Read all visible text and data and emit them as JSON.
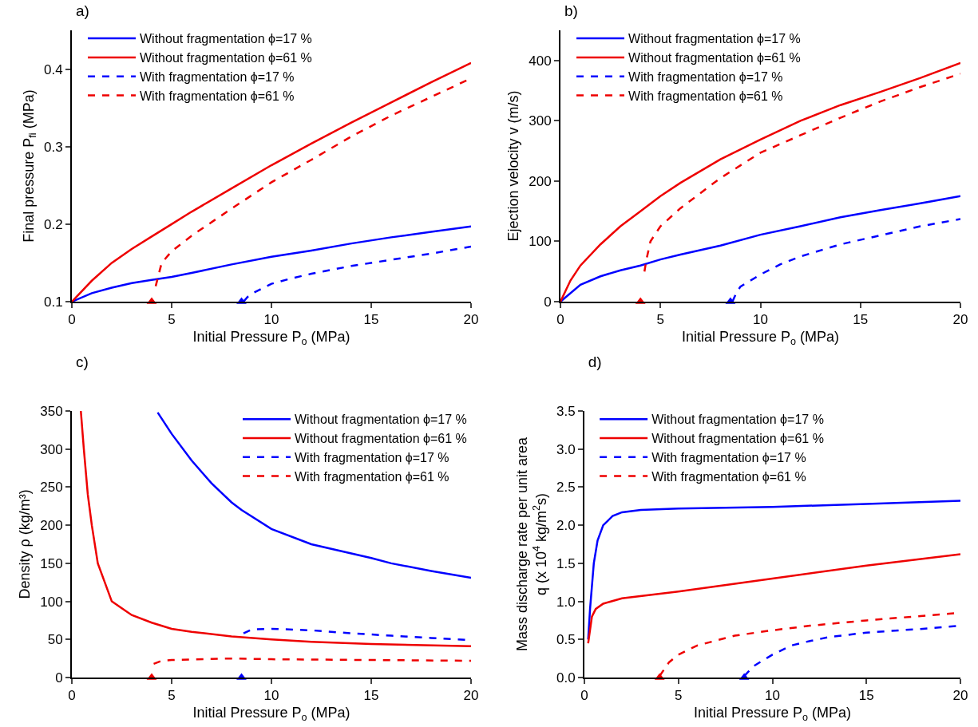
{
  "chart_data": [
    {
      "type": "line",
      "title": "a)",
      "xlabel": "Initial Pressure P$_{o}$ (MPa)",
      "ylabel": "Final pressure P$_{fi}$ (MPa)",
      "xlim": [
        0,
        20
      ],
      "xticks": [
        0,
        5,
        10,
        15,
        20
      ],
      "ylim": [
        0.1,
        0.45
      ],
      "yticks": [
        0.1,
        0.2,
        0.3,
        0.4
      ],
      "legend": "top left",
      "series": [
        {
          "name": "Without fragmentation ϕ=17 %",
          "color": "#0000ff",
          "line_style": "solid",
          "x": [
            0,
            1,
            2,
            3,
            4,
            5,
            6,
            8,
            10,
            12,
            14,
            16,
            18,
            20
          ],
          "values": [
            0.1,
            0.111,
            0.118,
            0.124,
            0.128,
            0.132,
            0.137,
            0.148,
            0.158,
            0.166,
            0.175,
            0.183,
            0.19,
            0.197
          ]
        },
        {
          "name": "Without fragmentation ϕ=61 %",
          "color": "#ee0000",
          "line_style": "solid",
          "x": [
            0,
            1,
            2,
            3,
            4,
            5,
            6,
            8,
            10,
            12,
            14,
            16,
            18,
            20
          ],
          "values": [
            0.1,
            0.127,
            0.15,
            0.168,
            0.184,
            0.2,
            0.216,
            0.246,
            0.276,
            0.304,
            0.331,
            0.357,
            0.383,
            0.408
          ]
        },
        {
          "name": "With fragmentation ϕ=17 %",
          "color": "#0000ff",
          "line_style": "dashed",
          "x": [
            8.6,
            8.8,
            9,
            10,
            11,
            12,
            14,
            16,
            18,
            20
          ],
          "values": [
            0.1,
            0.106,
            0.11,
            0.123,
            0.13,
            0.136,
            0.146,
            0.154,
            0.162,
            0.171
          ]
        },
        {
          "name": "With fragmentation ϕ=61 %",
          "color": "#ee0000",
          "line_style": "dashed",
          "x": [
            4.2,
            4.5,
            5,
            6,
            8,
            10,
            12,
            14,
            16,
            18,
            20
          ],
          "values": [
            0.12,
            0.15,
            0.165,
            0.185,
            0.22,
            0.254,
            0.283,
            0.313,
            0.34,
            0.364,
            0.388
          ]
        },
        {
          "type": "scatter",
          "marker": "triangle",
          "color": "#ee0000",
          "x": [
            4
          ],
          "values": [
            0.1
          ]
        },
        {
          "type": "scatter",
          "marker": "triangle",
          "color": "#0000ff",
          "x": [
            8.5
          ],
          "values": [
            0.1
          ]
        }
      ]
    },
    {
      "type": "line",
      "title": "b)",
      "xlabel": "Initial Pressure P$_{o}$ (MPa)",
      "ylabel": "Ejection velocity v (m/s)",
      "xlim": [
        0,
        20
      ],
      "xticks": [
        0,
        5,
        10,
        15,
        20
      ],
      "ylim": [
        0,
        450
      ],
      "yticks": [
        0,
        100,
        200,
        300,
        400
      ],
      "legend": "top left",
      "series": [
        {
          "name": "Without fragmentation ϕ=17 %",
          "color": "#0000ff",
          "line_style": "solid",
          "x": [
            0,
            1,
            2,
            3,
            4,
            5,
            6,
            8,
            10,
            12,
            14,
            16,
            18,
            20
          ],
          "values": [
            0,
            28,
            42,
            52,
            60,
            70,
            78,
            93,
            111,
            125,
            140,
            152,
            163,
            175
          ]
        },
        {
          "name": "Without fragmentation ϕ=61 %",
          "color": "#ee0000",
          "line_style": "solid",
          "x": [
            0,
            0.5,
            1,
            2,
            3,
            4,
            5,
            6,
            8,
            10,
            12,
            14,
            16,
            18,
            20
          ],
          "values": [
            0,
            35,
            60,
            95,
            125,
            150,
            175,
            197,
            236,
            269,
            300,
            326,
            348,
            371,
            396
          ]
        },
        {
          "name": "With fragmentation ϕ=17 %",
          "color": "#0000ff",
          "line_style": "dashed",
          "x": [
            8.6,
            8.8,
            9,
            10,
            11,
            12,
            14,
            16,
            18,
            20
          ],
          "values": [
            0,
            15,
            25,
            45,
            62,
            75,
            95,
            110,
            125,
            137
          ]
        },
        {
          "name": "With fragmentation ϕ=61 %",
          "color": "#ee0000",
          "line_style": "dashed",
          "x": [
            4.2,
            4.3,
            4.5,
            5,
            6,
            8,
            10,
            12,
            14,
            16,
            18,
            20
          ],
          "values": [
            50,
            70,
            100,
            125,
            155,
            205,
            247,
            276,
            305,
            332,
            356,
            378
          ]
        },
        {
          "type": "scatter",
          "marker": "triangle",
          "color": "#ee0000",
          "x": [
            4
          ],
          "values": [
            0
          ]
        },
        {
          "type": "scatter",
          "marker": "triangle",
          "color": "#0000ff",
          "x": [
            8.5
          ],
          "values": [
            0
          ]
        }
      ]
    },
    {
      "type": "line",
      "title": "c)",
      "xlabel": "Initial Pressure P$_{o}$ (MPa)",
      "ylabel": "Density ρ (kg/m³)",
      "xlim": [
        0,
        20
      ],
      "xticks": [
        0,
        5,
        10,
        15,
        20
      ],
      "ylim": [
        0,
        350
      ],
      "yticks": [
        0,
        50,
        100,
        150,
        200,
        250,
        300,
        350
      ],
      "legend": "top right",
      "series": [
        {
          "name": "Without fragmentation ϕ=17 %",
          "color": "#0000ff",
          "line_style": "solid",
          "x": [
            4.3,
            5,
            6,
            7,
            8,
            8.5,
            10,
            12,
            14,
            15,
            16,
            18,
            20
          ],
          "values": [
            348,
            320,
            285,
            255,
            230,
            220,
            195,
            175,
            163,
            157,
            150,
            140,
            131
          ]
        },
        {
          "name": "Without fragmentation ϕ=61 %",
          "color": "#ee0000",
          "line_style": "solid",
          "x": [
            0.45,
            0.6,
            0.8,
            1,
            1.3,
            2,
            3,
            4,
            5,
            6,
            8,
            10,
            12,
            15,
            20
          ],
          "values": [
            350,
            300,
            240,
            200,
            150,
            100,
            82,
            72,
            64,
            60,
            54,
            50,
            47,
            44,
            41
          ]
        },
        {
          "name": "With fragmentation ϕ=17 %",
          "color": "#0000ff",
          "line_style": "dashed",
          "x": [
            8.6,
            9,
            10,
            12,
            14,
            16,
            18,
            20
          ],
          "values": [
            58,
            63,
            64,
            62,
            58,
            55,
            52,
            49
          ]
        },
        {
          "name": "With fragmentation ϕ=61 %",
          "color": "#ee0000",
          "line_style": "dashed",
          "x": [
            4.1,
            4.5,
            5,
            8,
            10,
            15,
            20
          ],
          "values": [
            18,
            22,
            23,
            25,
            24,
            23,
            22
          ]
        },
        {
          "type": "scatter",
          "marker": "triangle",
          "color": "#ee0000",
          "x": [
            4
          ],
          "values": [
            0
          ]
        },
        {
          "type": "scatter",
          "marker": "triangle",
          "color": "#0000ff",
          "x": [
            8.5
          ],
          "values": [
            0
          ]
        }
      ]
    },
    {
      "type": "line",
      "title": "d)",
      "xlabel": "Initial Pressure P$_{o}$ (MPa)",
      "ylabel": "Mass discharge rate per unit area\nq (x 10$^{4}$ kg/m$^{2}$s)",
      "xlim": [
        0,
        20
      ],
      "xticks": [
        0,
        5,
        10,
        15,
        20
      ],
      "ylim": [
        0,
        3.5
      ],
      "yticks": [
        {
          "value": 0,
          "label": "0.0"
        },
        0.5,
        {
          "value": 1,
          "label": "1.0"
        },
        1.5,
        {
          "value": 2,
          "label": "2.0"
        },
        2.5,
        {
          "value": 3,
          "label": "3.0"
        },
        3.5
      ],
      "legend": "top left",
      "series": [
        {
          "name": "Without fragmentation ϕ=17 %",
          "color": "#0000ff",
          "line_style": "solid",
          "x": [
            0.2,
            0.3,
            0.5,
            0.7,
            1,
            1.5,
            2,
            3,
            5,
            10,
            15,
            20
          ],
          "values": [
            0.5,
            0.9,
            1.5,
            1.8,
            2.0,
            2.12,
            2.17,
            2.2,
            2.22,
            2.24,
            2.28,
            2.32
          ]
        },
        {
          "name": "Without fragmentation ϕ=61 %",
          "color": "#ee0000",
          "line_style": "solid",
          "x": [
            0.2,
            0.4,
            0.6,
            1,
            2,
            5,
            10,
            15,
            20
          ],
          "values": [
            0.45,
            0.8,
            0.9,
            0.97,
            1.04,
            1.13,
            1.3,
            1.47,
            1.62
          ]
        },
        {
          "name": "With fragmentation ϕ=17 %",
          "color": "#0000ff",
          "line_style": "dashed",
          "x": [
            8.5,
            9,
            10,
            11,
            12,
            13,
            15,
            18,
            20
          ],
          "values": [
            0.02,
            0.15,
            0.3,
            0.42,
            0.48,
            0.53,
            0.59,
            0.64,
            0.68
          ]
        },
        {
          "name": "With fragmentation ϕ=61 %",
          "color": "#ee0000",
          "line_style": "dashed",
          "x": [
            4,
            4.5,
            5,
            6,
            8,
            10,
            12,
            15,
            20
          ],
          "values": [
            0.02,
            0.2,
            0.3,
            0.42,
            0.55,
            0.62,
            0.68,
            0.75,
            0.85
          ]
        },
        {
          "type": "scatter",
          "marker": "triangle",
          "color": "#ee0000",
          "x": [
            4
          ],
          "values": [
            0
          ]
        },
        {
          "type": "scatter",
          "marker": "triangle",
          "color": "#0000ff",
          "x": [
            8.5
          ],
          "values": [
            0
          ]
        }
      ]
    }
  ]
}
